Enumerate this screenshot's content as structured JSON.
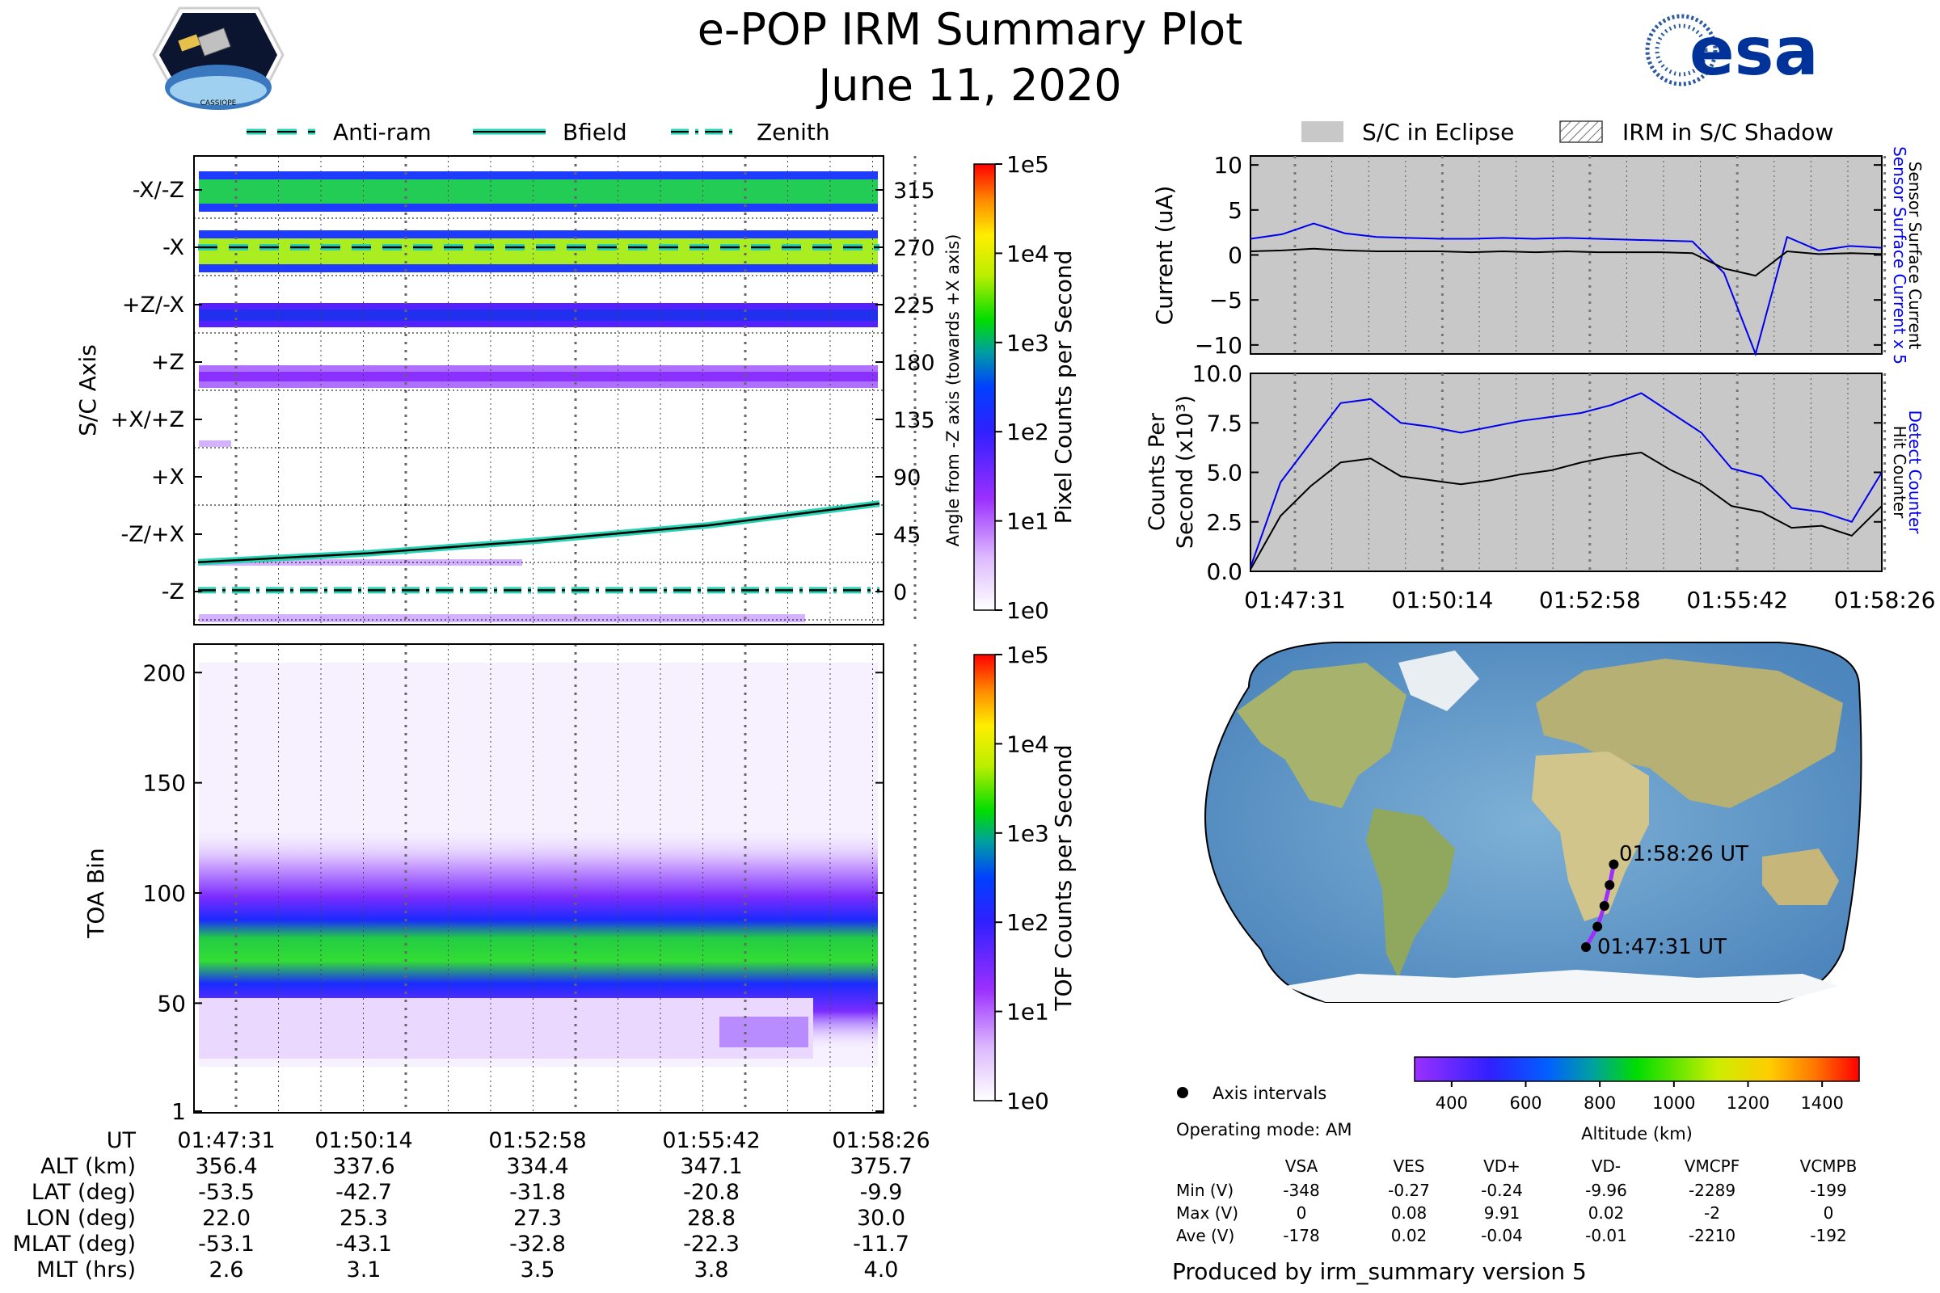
{
  "header": {
    "title": "e-POP IRM Summary Plot",
    "date": "June 11, 2020",
    "left_logo_text": "CASSIOPE",
    "right_logo_text": "esa"
  },
  "colors": {
    "eclipse_gray": "#c8c8c8",
    "dark_gray": "#555555",
    "blue": "#0000ee",
    "black": "#000000",
    "teal": "#27d3b3",
    "purple": "#9b30ff",
    "green": "#33cc33"
  },
  "legend_top": {
    "items": [
      "Anti-ram",
      "Bfield",
      "Zenith"
    ]
  },
  "legend_right": {
    "items": [
      "S/C in Eclipse",
      "IRM in S/C Shadow"
    ]
  },
  "time_ticks": [
    "01:47:31",
    "01:50:14",
    "01:52:58",
    "01:55:42",
    "01:58:26"
  ],
  "chart_data": [
    {
      "id": "sc_axis",
      "type": "heatmap",
      "ylabel": "S/C Axis",
      "ylabel_right": "Angle from -Z axis (towards +X axis)",
      "y_axis_labels": [
        "-X/-Z",
        "-X",
        "+Z/-X",
        "+Z",
        "+X/+Z",
        "+X",
        "-Z/+X",
        "-Z"
      ],
      "y_axis_angles": [
        "315",
        "270",
        "225",
        "180",
        "135",
        "90",
        "45",
        "0"
      ],
      "colorbar_label": "Pixel Counts per Second",
      "colorbar_ticks": [
        "1e0",
        "1e1",
        "1e2",
        "1e3",
        "1e4",
        "1e5"
      ],
      "bands": [
        {
          "axis": "-X/-Z",
          "level": "green"
        },
        {
          "axis": "-X",
          "level": "yellow-green"
        },
        {
          "axis": "+Z/-X",
          "level": "blue"
        },
        {
          "axis": "+Z",
          "level": "purple"
        }
      ],
      "overlays": [
        {
          "name": "Anti-ram",
          "angle_deg": [
            270,
            270,
            270,
            270,
            270
          ]
        },
        {
          "name": "Bfield",
          "angle_deg": [
            23,
            30,
            40,
            52,
            69
          ]
        },
        {
          "name": "Zenith",
          "angle_deg": [
            1,
            1,
            1,
            1,
            1
          ]
        }
      ]
    },
    {
      "id": "toa",
      "type": "heatmap",
      "ylabel": "TOA Bin",
      "y_ticks": [
        "1",
        "50",
        "100",
        "150",
        "200"
      ],
      "ylim": [
        1,
        210
      ],
      "band_center": 75,
      "band_width": 25,
      "colorbar_label": "TOF Counts per Second",
      "colorbar_ticks": [
        "1e0",
        "1e1",
        "1e2",
        "1e3",
        "1e4",
        "1e5"
      ]
    },
    {
      "id": "current",
      "type": "line",
      "ylabel": "Current (uA)",
      "ylim": [
        -11,
        11
      ],
      "y_ticks": [
        "10",
        "5",
        "0",
        "−5",
        "−10"
      ],
      "right_label_1": "Sensor Surface Current x 5",
      "right_label_2": "Sensor Surface Current",
      "series": [
        {
          "name": "Sensor Surface Current x 5",
          "color": "#0000ee",
          "values": [
            1.8,
            2.3,
            3.5,
            2.4,
            2.0,
            1.9,
            1.8,
            1.8,
            1.9,
            1.8,
            1.9,
            1.8,
            1.7,
            1.6,
            1.5,
            -2.0,
            -11,
            2.0,
            0.5,
            1.0,
            0.8
          ]
        },
        {
          "name": "Sensor Surface Current",
          "color": "#000000",
          "values": [
            0.4,
            0.5,
            0.7,
            0.5,
            0.4,
            0.4,
            0.4,
            0.3,
            0.4,
            0.3,
            0.4,
            0.3,
            0.3,
            0.3,
            0.2,
            -1.5,
            -2.3,
            0.4,
            0.1,
            0.2,
            0.1
          ]
        }
      ]
    },
    {
      "id": "counts",
      "type": "line",
      "ylabel": "Counts Per Second (x10³)",
      "ylim": [
        0,
        10
      ],
      "y_ticks": [
        "10.0",
        "7.5",
        "5.0",
        "2.5",
        "0.0"
      ],
      "right_label_1": "Detect Counter",
      "right_label_2": "Hit Counter",
      "series": [
        {
          "name": "Detect Counter",
          "color": "#0000ee",
          "values": [
            0.2,
            4.5,
            6.5,
            8.5,
            8.7,
            7.5,
            7.3,
            7.0,
            7.3,
            7.6,
            7.8,
            8.0,
            8.4,
            9.0,
            8.0,
            7.0,
            5.2,
            4.8,
            3.2,
            3.0,
            2.5,
            5.0
          ]
        },
        {
          "name": "Hit Counter",
          "color": "#000000",
          "values": [
            0.1,
            2.8,
            4.3,
            5.5,
            5.7,
            4.8,
            4.6,
            4.4,
            4.6,
            4.9,
            5.1,
            5.5,
            5.8,
            6.0,
            5.1,
            4.4,
            3.3,
            3.0,
            2.2,
            2.3,
            1.8,
            3.3
          ]
        }
      ]
    },
    {
      "id": "map",
      "type": "scatter",
      "annotations": [
        "01:58:26 UT",
        "01:47:31 UT"
      ],
      "track_lon": [
        22.0,
        25.3,
        27.3,
        28.8,
        30.0
      ],
      "track_lat": [
        -53.5,
        -42.7,
        -31.8,
        -20.8,
        -9.9
      ],
      "colorbar_label": "Altitude (km)",
      "colorbar_ticks": [
        "400",
        "600",
        "800",
        "1000",
        "1200",
        "1400"
      ],
      "colorbar_range": [
        300,
        1500
      ]
    }
  ],
  "ephemeris": {
    "rows": [
      {
        "label": "UT",
        "values": [
          "01:47:31",
          "01:50:14",
          "01:52:58",
          "01:55:42",
          "01:58:26"
        ]
      },
      {
        "label": "ALT (km)",
        "values": [
          "356.4",
          "337.6",
          "334.4",
          "347.1",
          "375.7"
        ]
      },
      {
        "label": "LAT (deg)",
        "values": [
          "-53.5",
          "-42.7",
          "-31.8",
          "-20.8",
          "-9.9"
        ]
      },
      {
        "label": "LON (deg)",
        "values": [
          "22.0",
          "25.3",
          "27.3",
          "28.8",
          "30.0"
        ]
      },
      {
        "label": "MLAT (deg)",
        "values": [
          "-53.1",
          "-43.1",
          "-32.8",
          "-22.3",
          "-11.7"
        ]
      },
      {
        "label": "MLT (hrs)",
        "values": [
          "2.6",
          "3.1",
          "3.5",
          "3.8",
          "4.0"
        ]
      }
    ]
  },
  "info": {
    "axis_intervals": "Axis intervals",
    "operating_mode": "Operating mode: AM",
    "altitude_label": "Altitude (km)",
    "table_headers": [
      "",
      "VSA",
      "VES",
      "VD+",
      "VD-",
      "VMCPF",
      "VCMPB"
    ],
    "table_rows": [
      [
        "Min (V)",
        "-348",
        "-0.27",
        "-0.24",
        "-9.96",
        "-2289",
        "-199"
      ],
      [
        "Max (V)",
        "0",
        "0.08",
        "9.91",
        "0.02",
        "-2",
        "0"
      ],
      [
        "Ave (V)",
        "-178",
        "0.02",
        "-0.04",
        "-0.01",
        "-2210",
        "-192"
      ]
    ],
    "produced_by": "Produced by irm_summary version 5"
  }
}
